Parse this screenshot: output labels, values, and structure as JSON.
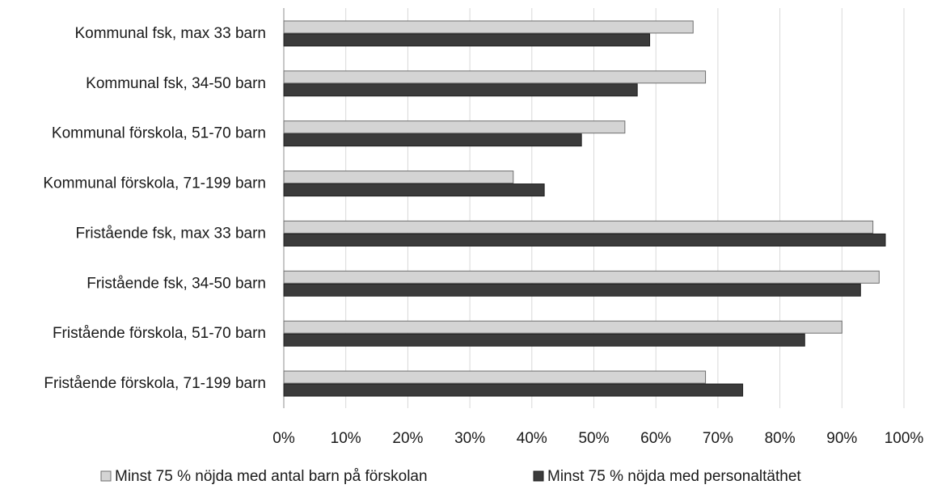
{
  "chart_data": {
    "type": "bar",
    "orientation": "horizontal",
    "title": "",
    "xlabel": "",
    "ylabel": "",
    "categories": [
      "Kommunal fsk, max 33 barn",
      "Kommunal fsk, 34-50 barn",
      "Kommunal förskola, 51-70 barn",
      "Kommunal förskola, 71-199 barn",
      "Fristående fsk, max 33 barn",
      "Fristående fsk, 34-50 barn",
      "Fristående förskola, 51-70 barn",
      "Fristående förskola, 71-199 barn"
    ],
    "series": [
      {
        "name": "Minst 75 % nöjda med antal barn på förskolan",
        "color": "#d4d4d4",
        "values": [
          66,
          68,
          55,
          37,
          95,
          96,
          90,
          68
        ]
      },
      {
        "name": "Minst 75 % nöjda med personaltäthet",
        "color": "#3b3b3b",
        "values": [
          59,
          57,
          48,
          42,
          97,
          93,
          84,
          74
        ]
      }
    ],
    "xlim": [
      0,
      100
    ],
    "xticks": [
      "0%",
      "10%",
      "20%",
      "30%",
      "40%",
      "50%",
      "60%",
      "70%",
      "80%",
      "90%",
      "100%"
    ],
    "grid": "vertical",
    "legend_position": "bottom"
  }
}
